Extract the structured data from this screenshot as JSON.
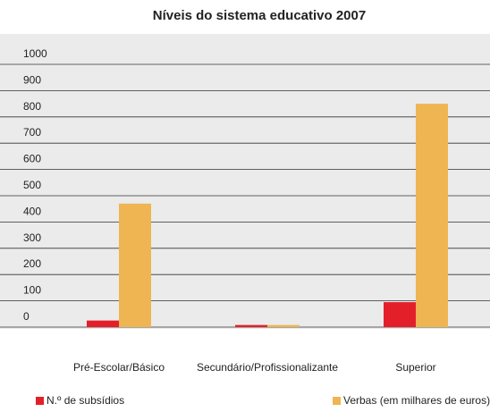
{
  "chart_data": {
    "type": "bar",
    "title": "Níveis do sistema educativo 2007",
    "categories": [
      "Pré-Escolar/Básico",
      "Secundário/Profissionalizante",
      "Superior"
    ],
    "series": [
      {
        "name": "N.º de subsídios",
        "color": "#e3202a",
        "values": [
          25,
          8,
          95
        ]
      },
      {
        "name": "Verbas (em milhares de euros)",
        "color": "#efb552",
        "values": [
          470,
          8,
          850
        ]
      }
    ],
    "ylim": [
      0,
      1000
    ],
    "yticks": [
      0,
      100,
      200,
      300,
      400,
      500,
      600,
      700,
      800,
      900,
      1000
    ],
    "grid": true
  }
}
